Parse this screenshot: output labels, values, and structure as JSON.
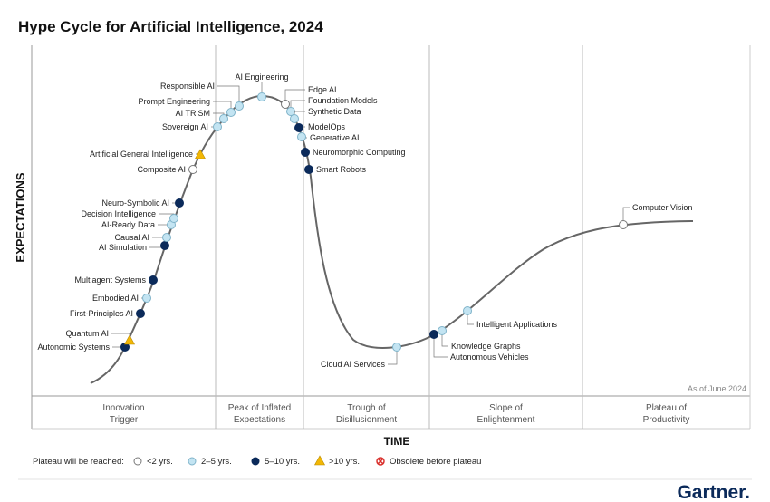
{
  "title": "Hype Cycle for Artificial Intelligence, 2024",
  "y_axis_label": "EXPECTATIONS",
  "x_axis_label": "TIME",
  "as_of": "As of June 2024",
  "phases": [
    [
      "Innovation",
      "Trigger"
    ],
    [
      "Peak of Inflated",
      "Expectations"
    ],
    [
      "Trough of",
      "Disillusionment"
    ],
    [
      "Slope of",
      "Enlightenment"
    ],
    [
      "Plateau of",
      "Productivity"
    ]
  ],
  "legend": {
    "title": "Plateau will be reached:",
    "items": [
      {
        "key": "lt2",
        "label": "<2 yrs."
      },
      {
        "key": "2to5",
        "label": "2–5 yrs."
      },
      {
        "key": "5to10",
        "label": "5–10 yrs."
      },
      {
        "key": "gt10",
        "label": ">10 yrs."
      },
      {
        "key": "obsolete",
        "label": "Obsolete before plateau"
      }
    ]
  },
  "colors": {
    "lt2": "#ffffff",
    "2to5": "#c3e4f2",
    "5to10": "#0b2a5a",
    "gt10": "#f2b705",
    "obsolete": "#d9302c",
    "curve": "#666666"
  },
  "technologies": [
    {
      "label": "Autonomic Systems",
      "plateau": "5to10"
    },
    {
      "label": "Quantum AI",
      "plateau": "gt10"
    },
    {
      "label": "First-Principles AI",
      "plateau": "5to10"
    },
    {
      "label": "Embodied AI",
      "plateau": "2to5"
    },
    {
      "label": "Multiagent Systems",
      "plateau": "5to10"
    },
    {
      "label": "AI Simulation",
      "plateau": "5to10"
    },
    {
      "label": "Causal AI",
      "plateau": "2to5"
    },
    {
      "label": "AI-Ready Data",
      "plateau": "2to5"
    },
    {
      "label": "Decision Intelligence",
      "plateau": "2to5"
    },
    {
      "label": "Neuro-Symbolic AI",
      "plateau": "5to10"
    },
    {
      "label": "Composite AI",
      "plateau": "lt2"
    },
    {
      "label": "Artificial General Intelligence",
      "plateau": "gt10"
    },
    {
      "label": "Sovereign AI",
      "plateau": "2to5"
    },
    {
      "label": "AI TRiSM",
      "plateau": "2to5"
    },
    {
      "label": "Prompt Engineering",
      "plateau": "2to5"
    },
    {
      "label": "Responsible AI",
      "plateau": "2to5"
    },
    {
      "label": "AI Engineering",
      "plateau": "2to5"
    },
    {
      "label": "Edge AI",
      "plateau": "lt2"
    },
    {
      "label": "Foundation Models",
      "plateau": "2to5"
    },
    {
      "label": "Synthetic Data",
      "plateau": "2to5"
    },
    {
      "label": "ModelOps",
      "plateau": "5to10"
    },
    {
      "label": "Generative AI",
      "plateau": "2to5"
    },
    {
      "label": "Neuromorphic Computing",
      "plateau": "5to10"
    },
    {
      "label": "Smart Robots",
      "plateau": "5to10"
    },
    {
      "label": "Cloud AI Services",
      "plateau": "2to5"
    },
    {
      "label": "Autonomous Vehicles",
      "plateau": "5to10"
    },
    {
      "label": "Knowledge Graphs",
      "plateau": "2to5"
    },
    {
      "label": "Intelligent Applications",
      "plateau": "2to5"
    },
    {
      "label": "Computer Vision",
      "plateau": "lt2"
    }
  ],
  "brand": "Gartner."
}
